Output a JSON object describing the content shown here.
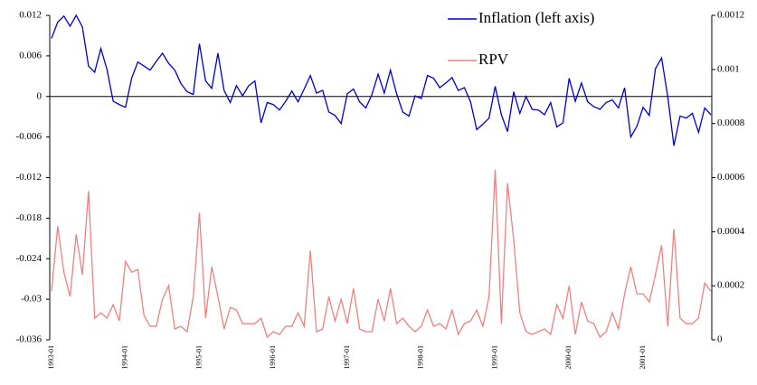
{
  "chart_data": {
    "type": "line",
    "categories": [
      "1993-01",
      null,
      null,
      null,
      null,
      null,
      null,
      null,
      null,
      null,
      null,
      null,
      "1994-01",
      null,
      null,
      null,
      null,
      null,
      null,
      null,
      null,
      null,
      null,
      null,
      "1995-01",
      null,
      null,
      null,
      null,
      null,
      null,
      null,
      null,
      null,
      null,
      null,
      "1996-01",
      null,
      null,
      null,
      null,
      null,
      null,
      null,
      null,
      null,
      null,
      null,
      "1997-01",
      null,
      null,
      null,
      null,
      null,
      null,
      null,
      null,
      null,
      null,
      null,
      "1998-01",
      null,
      null,
      null,
      null,
      null,
      null,
      null,
      null,
      null,
      null,
      null,
      "1999-01",
      null,
      null,
      null,
      null,
      null,
      null,
      null,
      null,
      null,
      null,
      null,
      "2000-01",
      null,
      null,
      null,
      null,
      null,
      null,
      null,
      null,
      null,
      null,
      null,
      "2001-01",
      null,
      null,
      null,
      null,
      null,
      null,
      null,
      null,
      null,
      null,
      null
    ],
    "series": [
      {
        "name": "Inflation (left axis)",
        "color": "#0000cc",
        "axis": "y",
        "values": [
          0.0086,
          0.011,
          0.0119,
          0.0104,
          0.012,
          0.0103,
          0.0045,
          0.0036,
          0.0071,
          0.004,
          -0.0007,
          -0.0012,
          -0.0016,
          0.0027,
          0.0051,
          0.0045,
          0.0039,
          0.0052,
          0.0064,
          0.0049,
          0.0039,
          0.0019,
          0.0007,
          0.0003,
          0.0078,
          0.0023,
          0.0012,
          0.0064,
          0.0009,
          -0.0009,
          0.0016,
          0.0001,
          0.0016,
          0.0023,
          -0.0039,
          -0.0009,
          -0.0012,
          -0.002,
          -0.0007,
          0.0008,
          -0.0008,
          0.0011,
          0.0031,
          0.0005,
          0.0009,
          -0.0023,
          -0.0028,
          -0.004,
          0.0004,
          0.0011,
          -0.0008,
          -0.0017,
          0.0003,
          0.0033,
          0.0005,
          0.0039,
          0.0004,
          -0.0023,
          -0.0029,
          0.0001,
          -0.0003,
          0.0031,
          0.0027,
          0.0013,
          0.002,
          0.0028,
          0.0009,
          0.0013,
          -0.0008,
          -0.0049,
          -0.0041,
          -0.0032,
          0.0015,
          -0.0027,
          -0.0052,
          0.0007,
          -0.0025,
          0,
          -0.0019,
          -0.002,
          -0.0027,
          -0.0009,
          -0.0045,
          -0.0039,
          0.0027,
          -0.0007,
          0.002,
          -0.0008,
          -0.0015,
          -0.0019,
          -0.0009,
          -0.0005,
          -0.0017,
          0.0013,
          -0.006,
          -0.0044,
          -0.0016,
          -0.0028,
          0.0041,
          0.0057,
          0,
          -0.0073,
          -0.0029,
          -0.0032,
          -0.0025,
          -0.0053,
          -0.0017,
          -0.0027
        ]
      },
      {
        "name": "RPV",
        "color": "#f08080",
        "axis": "y2",
        "values": [
          0.00018,
          0.00042,
          0.00025,
          0.00016,
          0.00039,
          0.00024,
          0.00055,
          8e-05,
          0.0001,
          8e-05,
          0.00013,
          7e-05,
          0.00029,
          0.00025,
          0.00026,
          9e-05,
          5e-05,
          5e-05,
          0.00015,
          0.0002,
          4e-05,
          5e-05,
          3e-05,
          0.00016,
          0.00047,
          8e-05,
          0.00027,
          0.00016,
          4e-05,
          0.00012,
          0.00011,
          6e-05,
          6e-05,
          6e-05,
          8e-05,
          1e-05,
          3e-05,
          2e-05,
          5e-05,
          5e-05,
          0.0001,
          5e-05,
          0.00033,
          3e-05,
          4e-05,
          0.00016,
          7e-05,
          0.00015,
          6e-05,
          0.00019,
          4e-05,
          3e-05,
          3e-05,
          0.00015,
          7e-05,
          0.00019,
          6e-05,
          8e-05,
          5e-05,
          3e-05,
          5e-05,
          0.00011,
          5e-05,
          6e-05,
          4e-05,
          0.00011,
          2e-05,
          6e-05,
          7e-05,
          0.00011,
          5e-05,
          0.00016,
          0.00063,
          6e-05,
          0.00058,
          0.00037,
          0.0001,
          3e-05,
          2e-05,
          3e-05,
          4e-05,
          2e-05,
          0.00013,
          8e-05,
          0.0002,
          2e-05,
          0.00014,
          7e-05,
          6e-05,
          1e-05,
          3e-05,
          0.0001,
          4e-05,
          0.00017,
          0.00027,
          0.00017,
          0.00017,
          0.00014,
          0.00024,
          0.00035,
          5e-05,
          0.00041,
          8e-05,
          6e-05,
          6e-05,
          8e-05,
          0.00021,
          0.00018
        ]
      }
    ],
    "ylim": [
      -0.036,
      0.012
    ],
    "yticks": [
      -0.036,
      -0.03,
      -0.024,
      -0.018,
      -0.012,
      -0.006,
      0,
      0.006,
      0.012
    ],
    "y2lim": [
      0,
      0.0012
    ],
    "y2ticks": [
      0,
      0.0002,
      0.0004,
      0.0006,
      0.0008,
      0.001,
      0.0012
    ],
    "legend": "upper right",
    "grid": false
  }
}
